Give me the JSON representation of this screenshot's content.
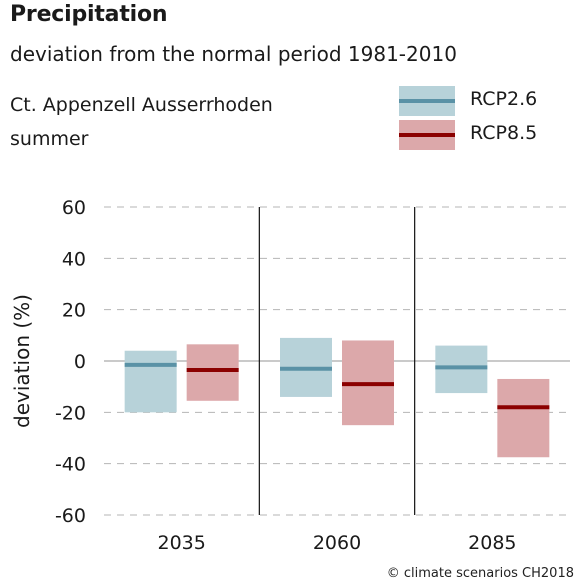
{
  "header": {
    "title": "Precipitation",
    "subtitle": "deviation from the normal period 1981-2010",
    "region": "Ct. Appenzell Ausserrhoden",
    "season": "summer"
  },
  "credit": "© climate scenarios CH2018",
  "legend": [
    {
      "name": "RCP2.6",
      "box_color": "#b7d2d9",
      "line_color": "#5a92a6"
    },
    {
      "name": "RCP8.5",
      "box_color": "#dca8aa",
      "line_color": "#8b0000"
    }
  ],
  "chart_data": {
    "type": "bar",
    "ylabel": "deviation (%)",
    "ylim": [
      -60,
      60
    ],
    "yticks": [
      "60",
      "40",
      "20",
      "0",
      "-20",
      "-40",
      "-60"
    ],
    "categories": [
      "2035",
      "2060",
      "2085"
    ],
    "grid": true,
    "series": [
      {
        "name": "RCP2.6",
        "low": [
          -20,
          -14,
          -12.5
        ],
        "median": [
          -1.5,
          -3,
          -2.5
        ],
        "high": [
          4,
          9,
          6
        ]
      },
      {
        "name": "RCP8.5",
        "low": [
          -15.5,
          -25,
          -37.5
        ],
        "median": [
          -3.5,
          -9,
          -18
        ],
        "high": [
          6.5,
          8,
          -7
        ]
      }
    ]
  }
}
